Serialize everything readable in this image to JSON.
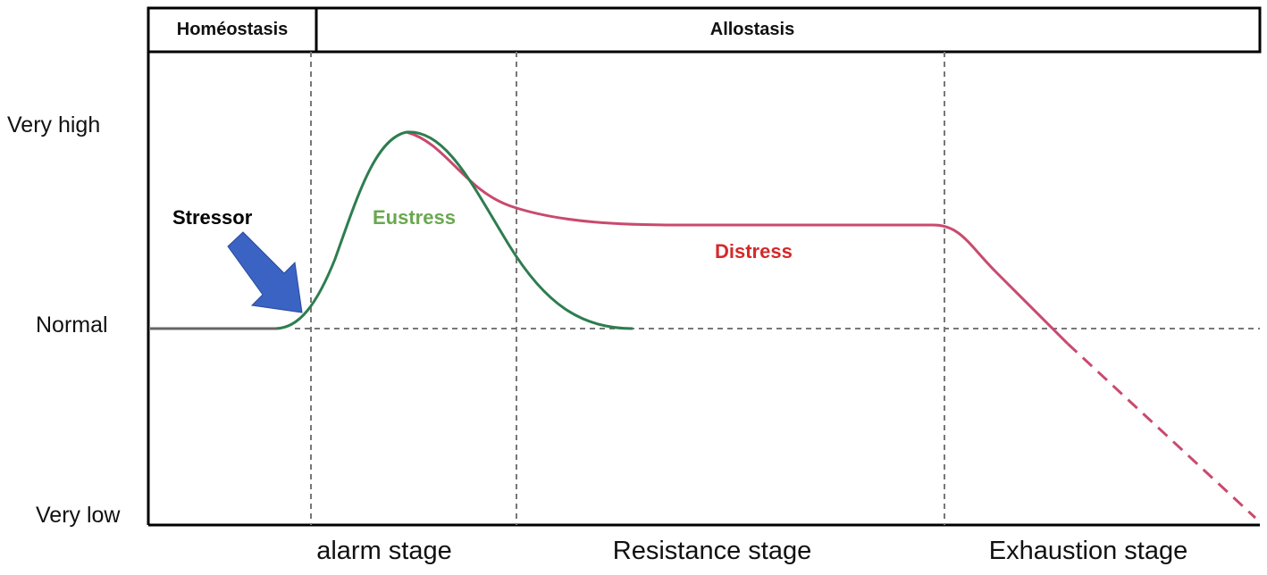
{
  "header": {
    "homeostasis": "Homéostasis",
    "allostasis": "Allostasis"
  },
  "y_axis": {
    "very_high": "Very high",
    "normal": "Normal",
    "very_low": "Very low"
  },
  "stages": {
    "alarm": "alarm stage",
    "resistance": "Resistance stage",
    "exhaustion": "Exhaustion stage"
  },
  "annotations": {
    "stressor": "Stressor",
    "eustress": "Eustress",
    "distress": "Distress"
  },
  "colors": {
    "eustress": "#2e7d4f",
    "eustress_label": "#6aa84f",
    "distress": "#c94a6e",
    "distress_label": "#d42a2a",
    "arrow": "#3a63c4",
    "baseline": "#666666"
  },
  "icons": {
    "stressor_arrow": "arrow-down-right-icon"
  }
}
